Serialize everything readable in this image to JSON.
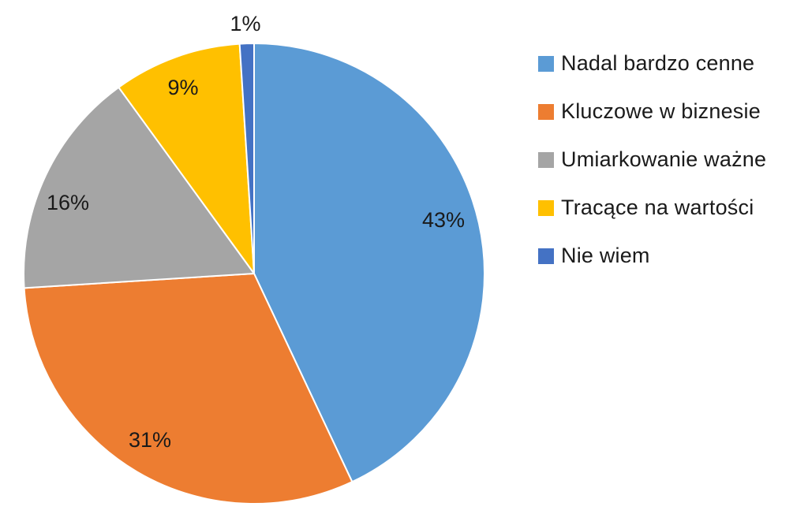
{
  "chart_data": {
    "type": "pie",
    "title": "",
    "legend_position": "right",
    "start_angle_deg": 0,
    "direction": "clockwise",
    "slices": [
      {
        "label": "Nadal bardzo cenne",
        "value": 43,
        "display": "43%",
        "color": "#5B9BD5"
      },
      {
        "label": "Kluczowe w biznesie",
        "value": 31,
        "display": "31%",
        "color": "#ED7D31"
      },
      {
        "label": "Umiarkowanie ważne",
        "value": 16,
        "display": "16%",
        "color": "#A5A5A5"
      },
      {
        "label": "Tracące na wartości",
        "value": 9,
        "display": "9%",
        "color": "#FFC000"
      },
      {
        "label": "Nie wiem",
        "value": 1,
        "display": "1%",
        "color": "#4472C4"
      }
    ]
  }
}
